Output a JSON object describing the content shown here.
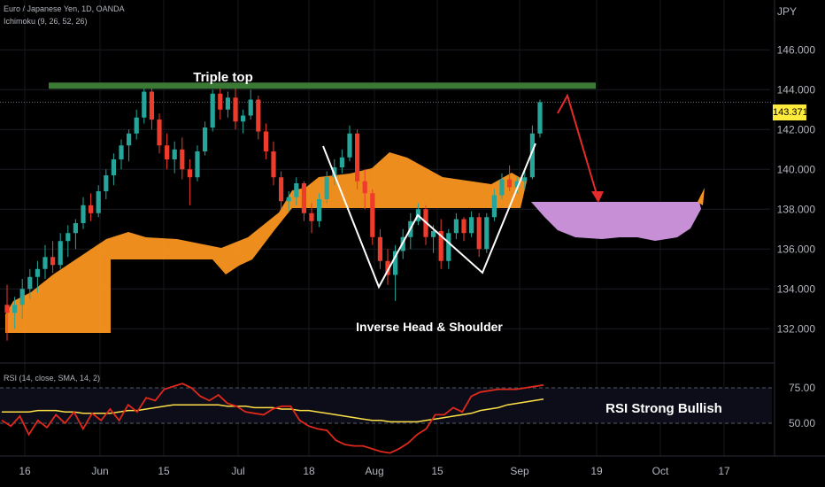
{
  "header": {
    "symbol_line": "Euro / Japanese Yen, 1D, OANDA",
    "indicator_line": "Ichimoku (9, 26, 52, 26)",
    "currency": "JPY"
  },
  "annotations": {
    "triple_top": "Triple top",
    "inverse_hs": "Inverse Head & Shoulder",
    "rsi_note": "RSI Strong Bullish"
  },
  "last_price": "143.371",
  "rsi_panel": {
    "label": "RSI (14, close, SMA, 14, 2)",
    "ticks": [
      "75.00",
      "50.00"
    ]
  },
  "chart_data": [
    {
      "type": "candlestick",
      "title": "Euro / Japanese Yen, 1D, OANDA",
      "ylabel": "JPY",
      "ylim": [
        130.5,
        148.5
      ],
      "y_ticks": [
        "146.000",
        "144.000",
        "142.000",
        "140.000",
        "138.000",
        "136.000",
        "134.000",
        "132.000"
      ],
      "x_ticks": [
        "16",
        "Jun",
        "15",
        "Jul",
        "18",
        "Aug",
        "15",
        "Sep",
        "19",
        "Oct",
        "17"
      ],
      "last_price": 143.371,
      "colors": {
        "up": "#26a69a",
        "down": "#ef3b2c",
        "cloud_bull": "#f7931e",
        "cloud_bear": "#c78fd6",
        "triple_top": "#3a7a35",
        "arrow": "#e52b2b"
      },
      "triple_top_level": 144.2,
      "ohlc": [
        [
          133.2,
          134.2,
          131.4,
          132.8
        ],
        [
          132.8,
          133.6,
          132.0,
          133.2
        ],
        [
          133.2,
          134.5,
          132.5,
          134.0
        ],
        [
          134.0,
          135.0,
          133.5,
          134.6
        ],
        [
          134.6,
          135.4,
          133.8,
          135.0
        ],
        [
          135.0,
          136.2,
          134.5,
          135.6
        ],
        [
          135.6,
          136.4,
          134.8,
          135.2
        ],
        [
          135.2,
          136.8,
          135.0,
          136.4
        ],
        [
          136.4,
          137.2,
          135.6,
          136.8
        ],
        [
          136.8,
          137.5,
          136.0,
          137.3
        ],
        [
          137.3,
          138.6,
          137.0,
          138.2
        ],
        [
          138.2,
          138.8,
          137.4,
          137.8
        ],
        [
          137.8,
          139.2,
          137.6,
          138.9
        ],
        [
          138.9,
          140.0,
          138.5,
          139.7
        ],
        [
          139.7,
          140.8,
          139.2,
          140.5
        ],
        [
          140.5,
          141.5,
          140.0,
          141.2
        ],
        [
          141.2,
          142.0,
          140.4,
          141.8
        ],
        [
          141.8,
          143.0,
          141.5,
          142.6
        ],
        [
          142.6,
          144.1,
          142.3,
          143.9
        ],
        [
          143.9,
          144.2,
          142.0,
          142.5
        ],
        [
          142.5,
          142.8,
          140.8,
          141.2
        ],
        [
          141.2,
          141.8,
          140.0,
          140.5
        ],
        [
          140.5,
          141.4,
          139.8,
          141.0
        ],
        [
          141.0,
          141.6,
          139.5,
          140.0
        ],
        [
          140.0,
          140.5,
          138.2,
          139.6
        ],
        [
          139.6,
          141.2,
          139.4,
          140.9
        ],
        [
          140.9,
          142.4,
          140.7,
          142.1
        ],
        [
          142.1,
          144.0,
          141.9,
          143.8
        ],
        [
          143.8,
          144.1,
          142.5,
          143.0
        ],
        [
          143.0,
          143.9,
          142.6,
          143.6
        ],
        [
          143.6,
          144.1,
          142.0,
          142.4
        ],
        [
          142.4,
          143.0,
          141.8,
          142.7
        ],
        [
          142.7,
          144.0,
          142.5,
          143.5
        ],
        [
          143.5,
          143.7,
          141.5,
          141.9
        ],
        [
          141.9,
          142.3,
          140.5,
          140.9
        ],
        [
          140.9,
          141.4,
          139.2,
          139.6
        ],
        [
          139.6,
          139.9,
          138.0,
          138.4
        ],
        [
          138.4,
          138.9,
          137.9,
          138.6
        ],
        [
          138.6,
          139.6,
          138.2,
          139.3
        ],
        [
          139.3,
          139.4,
          137.4,
          137.8
        ],
        [
          137.8,
          138.3,
          136.8,
          137.4
        ],
        [
          137.4,
          138.8,
          137.1,
          138.5
        ],
        [
          138.5,
          139.9,
          138.3,
          139.6
        ],
        [
          139.6,
          140.5,
          139.2,
          140.1
        ],
        [
          140.1,
          141.0,
          139.8,
          140.6
        ],
        [
          140.6,
          142.2,
          140.4,
          141.8
        ],
        [
          141.8,
          142.0,
          139.0,
          139.4
        ],
        [
          139.4,
          140.0,
          138.0,
          138.8
        ],
        [
          138.8,
          139.0,
          136.2,
          136.6
        ],
        [
          136.6,
          137.0,
          135.0,
          135.4
        ],
        [
          135.4,
          136.0,
          134.2,
          134.7
        ],
        [
          134.7,
          136.2,
          133.4,
          135.9
        ],
        [
          135.9,
          137.0,
          135.5,
          136.6
        ],
        [
          136.6,
          137.8,
          136.0,
          137.4
        ],
        [
          137.4,
          138.3,
          137.2,
          138.0
        ],
        [
          138.0,
          138.2,
          136.2,
          136.6
        ],
        [
          136.6,
          137.2,
          135.8,
          136.9
        ],
        [
          136.9,
          137.5,
          135.0,
          135.4
        ],
        [
          135.4,
          137.0,
          135.0,
          136.8
        ],
        [
          136.8,
          137.8,
          136.5,
          137.5
        ],
        [
          137.5,
          137.6,
          136.4,
          136.8
        ],
        [
          136.8,
          137.9,
          136.6,
          137.6
        ],
        [
          137.6,
          137.8,
          135.6,
          136.0
        ],
        [
          136.0,
          137.8,
          135.8,
          137.6
        ],
        [
          137.6,
          139.0,
          137.4,
          138.7
        ],
        [
          138.7,
          139.8,
          138.5,
          139.5
        ],
        [
          139.5,
          140.2,
          138.9,
          139.1
        ],
        [
          139.1,
          139.6,
          138.8,
          139.4
        ],
        [
          139.4,
          140.0,
          139.0,
          139.6
        ],
        [
          139.6,
          142.2,
          139.5,
          141.8
        ],
        [
          141.8,
          143.5,
          141.6,
          143.37
        ]
      ],
      "rsi": {
        "ylim": [
          30,
          85
        ],
        "levels": [
          75,
          50
        ],
        "rsi_values": [
          52,
          48,
          55,
          42,
          52,
          47,
          56,
          50,
          58,
          46,
          57,
          52,
          60,
          52,
          63,
          58,
          68,
          66,
          74,
          76,
          78,
          75,
          69,
          66,
          70,
          64,
          62,
          58,
          57,
          56,
          60,
          62,
          62,
          52,
          48,
          46,
          45,
          38,
          35,
          34,
          34,
          32,
          30,
          29,
          32,
          36,
          42,
          46,
          56,
          56,
          61,
          58,
          69,
          72,
          73,
          74,
          74,
          74,
          75,
          76,
          77
        ],
        "sma_values": [
          58,
          58,
          58,
          58,
          59,
          59,
          59,
          58,
          58,
          57,
          57,
          57,
          57,
          58,
          59,
          59,
          60,
          61,
          62,
          63,
          63,
          63,
          63,
          63,
          63,
          62,
          62,
          62,
          61,
          61,
          61,
          60,
          60,
          59,
          59,
          58,
          57,
          56,
          55,
          54,
          53,
          52,
          52,
          51,
          51,
          51,
          51,
          52,
          53,
          54,
          55,
          56,
          57,
          59,
          60,
          61,
          63,
          64,
          65,
          66,
          67
        ]
      }
    }
  ]
}
